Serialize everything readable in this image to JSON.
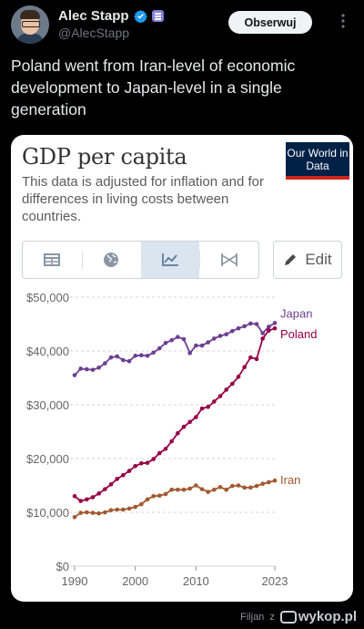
{
  "author": {
    "name": "Alec Stapp",
    "handle": "@AlecStapp",
    "follow_label": "Obserwuj"
  },
  "tweet": {
    "text": "Poland went from Iran-level of economic development to Japan-level in a single generation"
  },
  "card": {
    "title": "GDP per capita",
    "subtitle": "This data is adjusted for inflation and for differences in living costs between countries.",
    "logo_text": "Our World in Data",
    "tabs": [
      "table-icon",
      "globe-icon",
      "line-chart-icon",
      "slope-icon"
    ],
    "active_tab": 2,
    "edit_label": "Edit"
  },
  "chart_data": {
    "type": "line",
    "ylim": [
      0,
      50000
    ],
    "y_ticks": [
      "$0",
      "$10,000",
      "$20,000",
      "$30,000",
      "$40,000",
      "$50,000"
    ],
    "x_ticks": [
      "1990",
      "2000",
      "2010",
      "2023"
    ],
    "xlim": [
      1990,
      2023
    ],
    "grid": true,
    "x": [
      1990,
      1991,
      1992,
      1993,
      1994,
      1995,
      1996,
      1997,
      1998,
      1999,
      2000,
      2001,
      2002,
      2003,
      2004,
      2005,
      2006,
      2007,
      2008,
      2009,
      2010,
      2011,
      2012,
      2013,
      2014,
      2015,
      2016,
      2017,
      2018,
      2019,
      2020,
      2021,
      2022,
      2023
    ],
    "series": [
      {
        "name": "Japan",
        "color": "#6d3e91",
        "values": [
          35500,
          36700,
          36600,
          36500,
          36900,
          37700,
          38800,
          39000,
          38300,
          38100,
          39100,
          39200,
          39100,
          39700,
          40500,
          41500,
          42000,
          42600,
          42200,
          39600,
          41000,
          41000,
          41600,
          42300,
          42800,
          43100,
          43700,
          44200,
          44600,
          45100,
          45000,
          43300,
          44500,
          45200
        ]
      },
      {
        "name": "Poland",
        "color": "#970046",
        "values": [
          13000,
          12100,
          12400,
          12800,
          13500,
          14300,
          15200,
          16200,
          16900,
          17700,
          18600,
          19100,
          19200,
          19900,
          21000,
          21800,
          23200,
          24700,
          25900,
          26800,
          27700,
          29300,
          29600,
          30600,
          31600,
          32800,
          33900,
          35200,
          37000,
          38800,
          38500,
          42300,
          43800,
          44200
        ]
      },
      {
        "name": "Iran",
        "color": "#a2582f",
        "values": [
          9100,
          9900,
          10000,
          9900,
          9800,
          10000,
          10400,
          10500,
          10500,
          10700,
          11000,
          11500,
          12400,
          13000,
          13100,
          13400,
          14200,
          14200,
          14200,
          14400,
          15000,
          14300,
          13800,
          14200,
          14700,
          14200,
          14900,
          15000,
          14600,
          14600,
          14900,
          15300,
          15600,
          15900
        ]
      }
    ]
  },
  "footer": {
    "credit_prefix": "Filjan",
    "credit_z": "z",
    "site": "wykop.pl"
  }
}
